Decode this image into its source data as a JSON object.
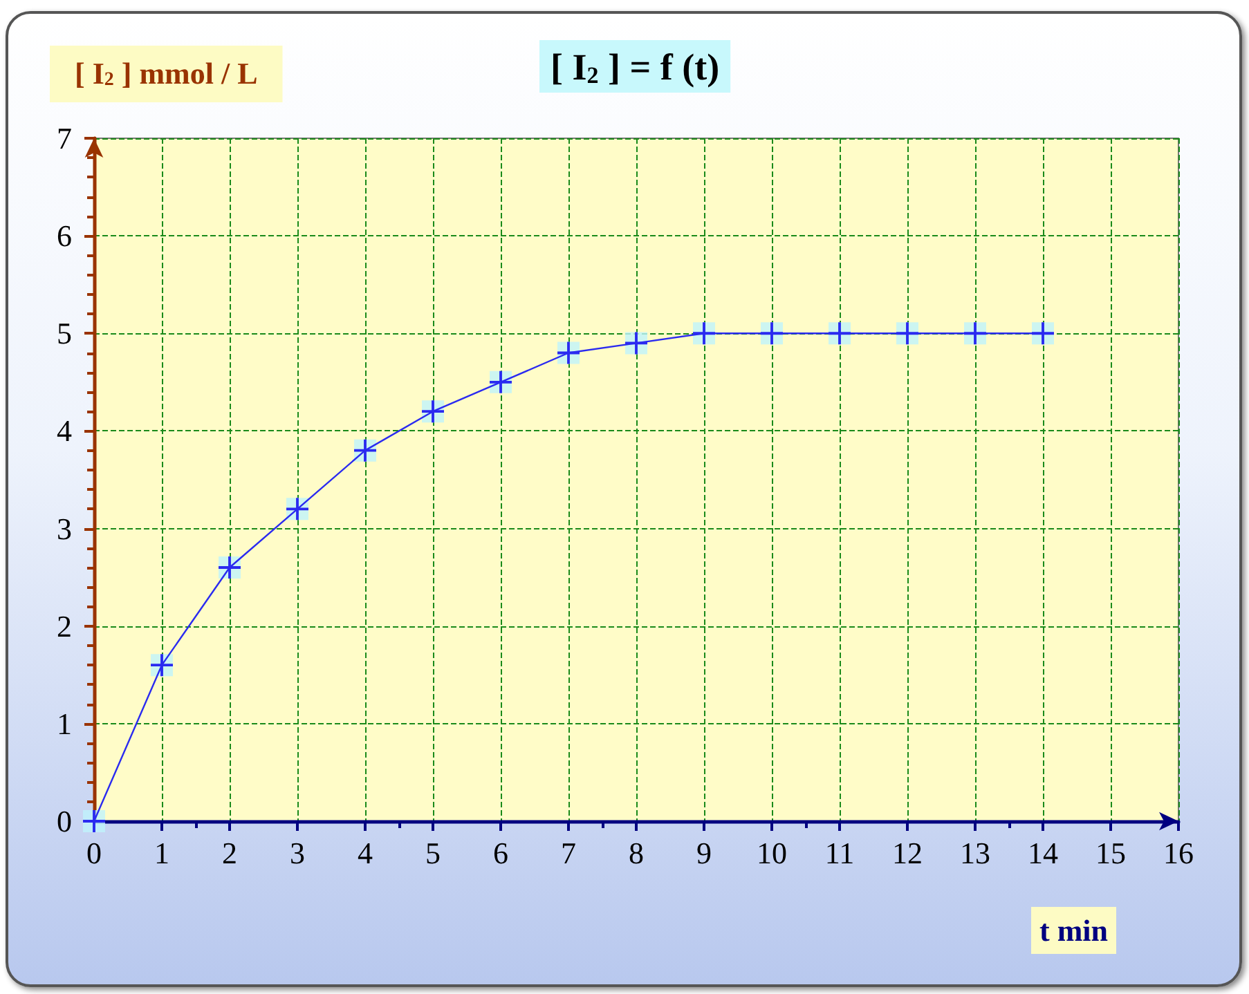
{
  "chart_data": {
    "type": "line",
    "title": "[ I$_{2}$ ] = f (t)",
    "xlabel": "t min",
    "ylabel": "[ I$_{2}$ ] mmol / L",
    "x": [
      0,
      1,
      2,
      3,
      4,
      5,
      6,
      7,
      8,
      9,
      10,
      11,
      12,
      13,
      14
    ],
    "series": [
      {
        "color": "#2a2af0",
        "values": [
          0,
          1.6,
          2.6,
          3.2,
          3.8,
          4.2,
          4.5,
          4.8,
          4.9,
          5,
          5,
          5,
          5,
          5,
          5
        ]
      }
    ],
    "xlim": [
      0,
      16
    ],
    "xticks": [
      0,
      1,
      2,
      3,
      4,
      5,
      6,
      7,
      8,
      9,
      10,
      11,
      12,
      13,
      14,
      15,
      16
    ],
    "ylim": [
      0,
      7
    ],
    "yticks": [
      0,
      1,
      2,
      3,
      4,
      5,
      6,
      7
    ],
    "grid": true,
    "marker": "cross",
    "line_style": "solid"
  }
}
